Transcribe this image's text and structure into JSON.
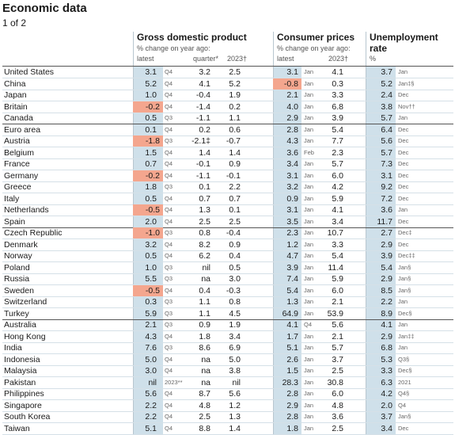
{
  "header": {
    "title": "Economic data",
    "subtitle": "1 of 2"
  },
  "table": {
    "headers": {
      "gdp": {
        "title": "Gross domestic product",
        "note": "% change on year ago:",
        "latest": "latest",
        "quarter": "quarter*",
        "year": "2023†"
      },
      "cpi": {
        "title": "Consumer prices",
        "note": "% change on year ago:",
        "latest": "latest",
        "year": "2023†"
      },
      "unemployment": {
        "title": "Unemployment rate",
        "unit": "%"
      }
    },
    "groups": [
      [
        [
          "United States",
          "3.1",
          "Q4",
          "3.2",
          "2.5",
          "3.1",
          "Jan",
          "4.1",
          "3.7",
          "Jan"
        ],
        [
          "China",
          "5.2",
          "Q4",
          "4.1",
          "5.2",
          "-0.8",
          "Jan",
          "0.3",
          "5.2",
          "Jan‡§"
        ],
        [
          "Japan",
          "1.0",
          "Q4",
          "-0.4",
          "1.9",
          "2.1",
          "Jan",
          "3.3",
          "2.4",
          "Dec"
        ],
        [
          "Britain",
          "-0.2",
          "Q4",
          "-1.4",
          "0.2",
          "4.0",
          "Jan",
          "6.8",
          "3.8",
          "Nov††"
        ],
        [
          "Canada",
          "0.5",
          "Q3",
          "-1.1",
          "1.1",
          "2.9",
          "Jan",
          "3.9",
          "5.7",
          "Jan"
        ]
      ],
      [
        [
          "Euro area",
          "0.1",
          "Q4",
          "0.2",
          "0.6",
          "2.8",
          "Jan",
          "5.4",
          "6.4",
          "Dec"
        ],
        [
          "Austria",
          "-1.8",
          "Q3",
          "-2.1‡",
          "-0.7",
          "4.3",
          "Jan",
          "7.7",
          "5.6",
          "Dec"
        ],
        [
          "Belgium",
          "1.5",
          "Q4",
          "1.4",
          "1.4",
          "3.6",
          "Feb",
          "2.3",
          "5.7",
          "Dec"
        ],
        [
          "France",
          "0.7",
          "Q4",
          "-0.1",
          "0.9",
          "3.4",
          "Jan",
          "5.7",
          "7.3",
          "Dec"
        ],
        [
          "Germany",
          "-0.2",
          "Q4",
          "-1.1",
          "-0.1",
          "3.1",
          "Jan",
          "6.0",
          "3.1",
          "Dec"
        ],
        [
          "Greece",
          "1.8",
          "Q3",
          "0.1",
          "2.2",
          "3.2",
          "Jan",
          "4.2",
          "9.2",
          "Dec"
        ],
        [
          "Italy",
          "0.5",
          "Q4",
          "0.7",
          "0.7",
          "0.9",
          "Jan",
          "5.9",
          "7.2",
          "Dec"
        ],
        [
          "Netherlands",
          "-0.5",
          "Q4",
          "1.3",
          "0.1",
          "3.1",
          "Jan",
          "4.1",
          "3.6",
          "Jan"
        ],
        [
          "Spain",
          "2.0",
          "Q4",
          "2.5",
          "2.5",
          "3.5",
          "Jan",
          "3.4",
          "11.7",
          "Dec"
        ]
      ],
      [
        [
          "Czech Republic",
          "-1.0",
          "Q3",
          "0.8",
          "-0.4",
          "2.3",
          "Jan",
          "10.7",
          "2.7",
          "Dec‡"
        ],
        [
          "Denmark",
          "3.2",
          "Q4",
          "8.2",
          "0.9",
          "1.2",
          "Jan",
          "3.3",
          "2.9",
          "Dec"
        ],
        [
          "Norway",
          "0.5",
          "Q4",
          "6.2",
          "0.4",
          "4.7",
          "Jan",
          "5.4",
          "3.9",
          "Dec‡‡"
        ],
        [
          "Poland",
          "1.0",
          "Q3",
          "nil",
          "0.5",
          "3.9",
          "Jan",
          "11.4",
          "5.4",
          "Jan§"
        ],
        [
          "Russia",
          "5.5",
          "Q3",
          "na",
          "3.0",
          "7.4",
          "Jan",
          "5.9",
          "2.9",
          "Jan§"
        ],
        [
          "Sweden",
          "-0.5",
          "Q4",
          "0.4",
          "-0.3",
          "5.4",
          "Jan",
          "6.0",
          "8.5",
          "Jan§"
        ],
        [
          "Switzerland",
          "0.3",
          "Q3",
          "1.1",
          "0.8",
          "1.3",
          "Jan",
          "2.1",
          "2.2",
          "Jan"
        ],
        [
          "Turkey",
          "5.9",
          "Q3",
          "1.1",
          "4.5",
          "64.9",
          "Jan",
          "53.9",
          "8.9",
          "Dec§"
        ]
      ],
      [
        [
          "Australia",
          "2.1",
          "Q3",
          "0.9",
          "1.9",
          "4.1",
          "Q4",
          "5.6",
          "4.1",
          "Jan"
        ],
        [
          "Hong Kong",
          "4.3",
          "Q4",
          "1.8",
          "3.4",
          "1.7",
          "Jan",
          "2.1",
          "2.9",
          "Jan‡‡"
        ],
        [
          "India",
          "7.6",
          "Q3",
          "8.6",
          "6.9",
          "5.1",
          "Jan",
          "5.7",
          "6.8",
          "Jan"
        ],
        [
          "Indonesia",
          "5.0",
          "Q4",
          "na",
          "5.0",
          "2.6",
          "Jan",
          "3.7",
          "5.3",
          "Q3§"
        ],
        [
          "Malaysia",
          "3.0",
          "Q4",
          "na",
          "3.8",
          "1.5",
          "Jan",
          "2.5",
          "3.3",
          "Dec§"
        ],
        [
          "Pakistan",
          "nil",
          "2023**",
          "na",
          "nil",
          "28.3",
          "Jan",
          "30.8",
          "6.3",
          "2021"
        ],
        [
          "Philippines",
          "5.6",
          "Q4",
          "8.7",
          "5.6",
          "2.8",
          "Jan",
          "6.0",
          "4.2",
          "Q4§"
        ],
        [
          "Singapore",
          "2.2",
          "Q4",
          "4.8",
          "1.2",
          "2.9",
          "Jan",
          "4.8",
          "2.0",
          "Q4"
        ],
        [
          "South Korea",
          "2.2",
          "Q4",
          "2.5",
          "1.3",
          "2.8",
          "Jan",
          "3.6",
          "3.7",
          "Jan§"
        ],
        [
          "Taiwan",
          "5.1",
          "Q4",
          "8.8",
          "1.4",
          "1.8",
          "Jan",
          "2.5",
          "3.4",
          "Dec"
        ]
      ]
    ]
  }
}
